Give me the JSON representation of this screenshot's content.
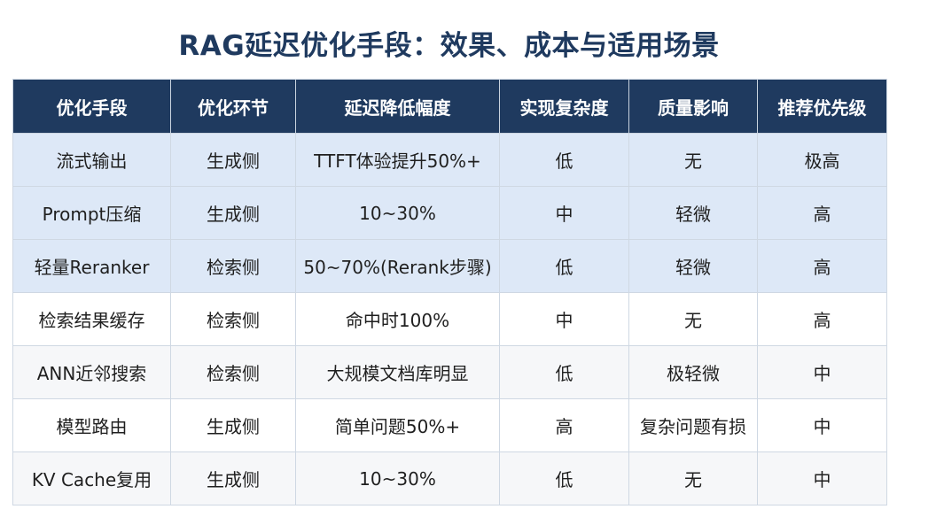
{
  "title": "RAG延迟优化手段：效果、成本与适用场景",
  "table": {
    "headers": [
      "优化手段",
      "优化环节",
      "延迟降低幅度",
      "实现复杂度",
      "质量影响",
      "推荐优先级"
    ],
    "rows": [
      [
        "流式输出",
        "生成侧",
        "TTFT体验提升50%+",
        "低",
        "无",
        "极高"
      ],
      [
        "Prompt压缩",
        "生成侧",
        "10~30%",
        "中",
        "轻微",
        "高"
      ],
      [
        "轻量Reranker",
        "检索侧",
        "50~70%(Rerank步骤)",
        "低",
        "轻微",
        "高"
      ],
      [
        "检索结果缓存",
        "检索侧",
        "命中时100%",
        "中",
        "无",
        "高"
      ],
      [
        "ANN近邻搜索",
        "检索侧",
        "大规模文档库明显",
        "低",
        "极轻微",
        "中"
      ],
      [
        "模型路由",
        "生成侧",
        "简单问题50%+",
        "高",
        "复杂问题有损",
        "中"
      ],
      [
        "KV Cache复用",
        "生成侧",
        "10~30%",
        "低",
        "无",
        "中"
      ]
    ]
  },
  "colors": {
    "header_bg": "#1f3a5f",
    "highlight_row_bg": "#dde8f7",
    "alt_row_bg": "#f6f7f9"
  }
}
